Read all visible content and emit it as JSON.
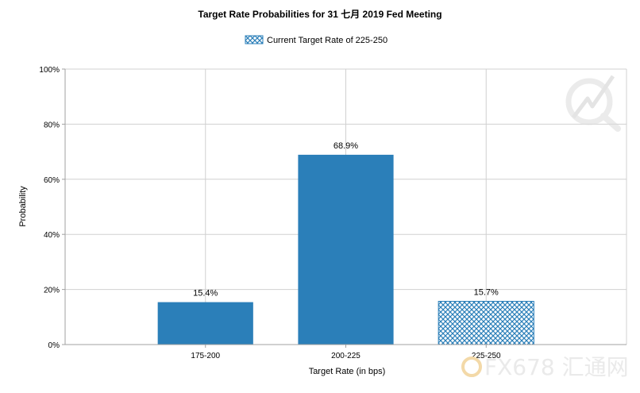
{
  "chart_data": {
    "type": "bar",
    "title": "Target Rate Probabilities for 31 七月 2019  Fed Meeting",
    "legend": {
      "label": "Current Target Rate of 225-250",
      "placement": "top-center"
    },
    "categories": [
      "175-200",
      "200-225",
      "225-250"
    ],
    "values": [
      15.4,
      68.9,
      15.7
    ],
    "data_labels": [
      "15.4%",
      "68.9%",
      "15.7%"
    ],
    "highlighted_category": "225-250",
    "xlabel": "Target Rate (in bps)",
    "ylabel": "Probability",
    "ylim": [
      0,
      100
    ],
    "yticks": [
      "0%",
      "20%",
      "40%",
      "60%",
      "80%",
      "100%"
    ],
    "grid": true,
    "colors": {
      "bar": "#2b7fb9",
      "grid": "#d0d0d0",
      "axis": "#a0a0a0"
    }
  },
  "watermark": {
    "text": "FX678 汇通网"
  }
}
